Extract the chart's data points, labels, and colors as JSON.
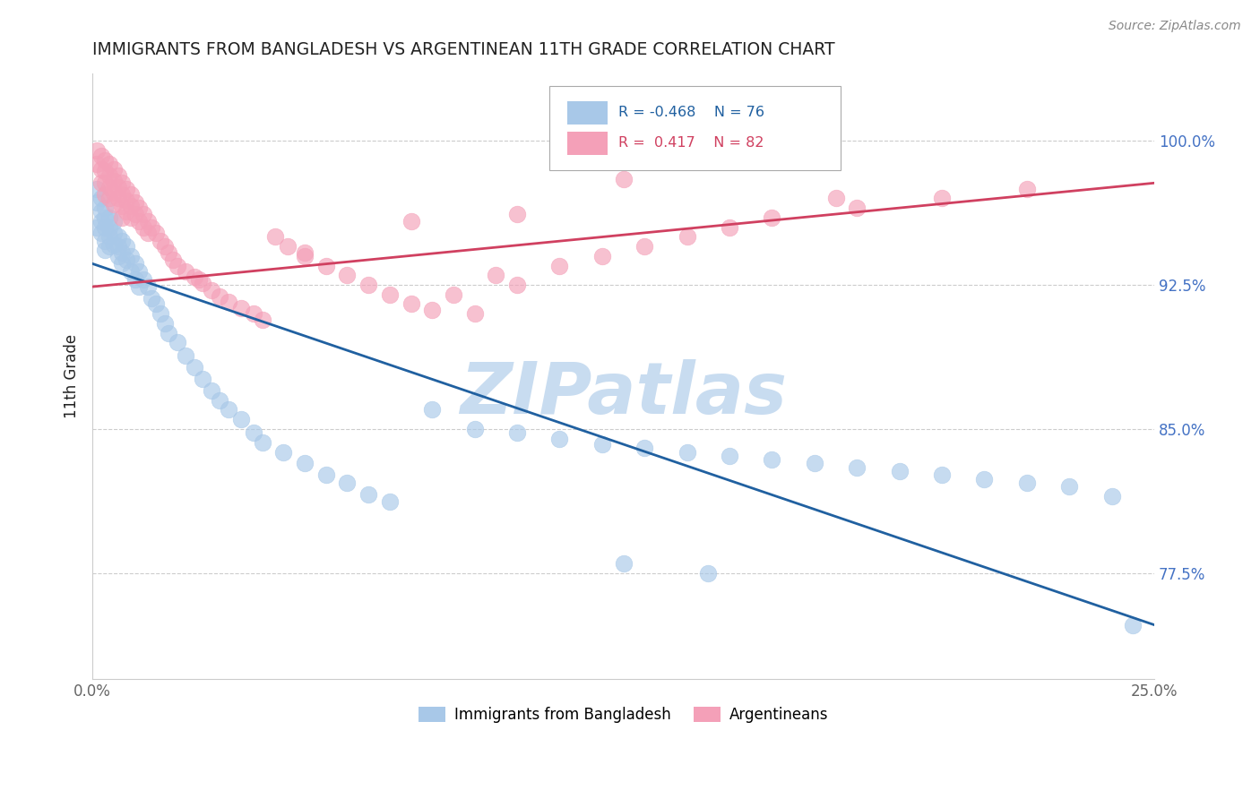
{
  "title": "IMMIGRANTS FROM BANGLADESH VS ARGENTINEAN 11TH GRADE CORRELATION CHART",
  "source": "Source: ZipAtlas.com",
  "ylabel": "11th Grade",
  "ytick_labels": [
    "77.5%",
    "85.0%",
    "92.5%",
    "100.0%"
  ],
  "ytick_values": [
    0.775,
    0.85,
    0.925,
    1.0
  ],
  "xlim": [
    0.0,
    0.25
  ],
  "ylim": [
    0.72,
    1.035
  ],
  "legend_blue_r": "R = -0.468",
  "legend_blue_n": "N = 76",
  "legend_pink_r": "R =  0.417",
  "legend_pink_n": "N = 82",
  "blue_color": "#A8C8E8",
  "pink_color": "#F4A0B8",
  "blue_line_color": "#2060A0",
  "pink_line_color": "#D04060",
  "title_color": "#222222",
  "source_color": "#888888",
  "axis_color": "#666666",
  "grid_color": "#CCCCCC",
  "watermark_color": "#C8DCF0",
  "blue_scatter_x": [
    0.001,
    0.001,
    0.001,
    0.002,
    0.002,
    0.002,
    0.002,
    0.003,
    0.003,
    0.003,
    0.003,
    0.003,
    0.004,
    0.004,
    0.004,
    0.004,
    0.005,
    0.005,
    0.005,
    0.006,
    0.006,
    0.006,
    0.007,
    0.007,
    0.007,
    0.008,
    0.008,
    0.009,
    0.009,
    0.01,
    0.01,
    0.011,
    0.011,
    0.012,
    0.013,
    0.014,
    0.015,
    0.016,
    0.017,
    0.018,
    0.02,
    0.022,
    0.024,
    0.026,
    0.028,
    0.03,
    0.032,
    0.035,
    0.038,
    0.04,
    0.045,
    0.05,
    0.055,
    0.06,
    0.065,
    0.07,
    0.08,
    0.09,
    0.1,
    0.11,
    0.12,
    0.13,
    0.14,
    0.15,
    0.16,
    0.17,
    0.18,
    0.19,
    0.2,
    0.21,
    0.22,
    0.23,
    0.24,
    0.245,
    0.125,
    0.145
  ],
  "blue_scatter_y": [
    0.975,
    0.968,
    0.955,
    0.97,
    0.963,
    0.958,
    0.952,
    0.965,
    0.96,
    0.955,
    0.948,
    0.943,
    0.96,
    0.955,
    0.95,
    0.945,
    0.958,
    0.952,
    0.946,
    0.95,
    0.945,
    0.94,
    0.948,
    0.942,
    0.936,
    0.945,
    0.938,
    0.94,
    0.932,
    0.936,
    0.928,
    0.932,
    0.924,
    0.928,
    0.924,
    0.918,
    0.915,
    0.91,
    0.905,
    0.9,
    0.895,
    0.888,
    0.882,
    0.876,
    0.87,
    0.865,
    0.86,
    0.855,
    0.848,
    0.843,
    0.838,
    0.832,
    0.826,
    0.822,
    0.816,
    0.812,
    0.86,
    0.85,
    0.848,
    0.845,
    0.842,
    0.84,
    0.838,
    0.836,
    0.834,
    0.832,
    0.83,
    0.828,
    0.826,
    0.824,
    0.822,
    0.82,
    0.815,
    0.748,
    0.78,
    0.775
  ],
  "pink_scatter_x": [
    0.001,
    0.001,
    0.002,
    0.002,
    0.002,
    0.003,
    0.003,
    0.003,
    0.003,
    0.004,
    0.004,
    0.004,
    0.004,
    0.005,
    0.005,
    0.005,
    0.005,
    0.006,
    0.006,
    0.006,
    0.007,
    0.007,
    0.007,
    0.007,
    0.008,
    0.008,
    0.008,
    0.009,
    0.009,
    0.009,
    0.01,
    0.01,
    0.011,
    0.011,
    0.012,
    0.012,
    0.013,
    0.013,
    0.014,
    0.015,
    0.016,
    0.017,
    0.018,
    0.019,
    0.02,
    0.022,
    0.024,
    0.026,
    0.028,
    0.03,
    0.032,
    0.035,
    0.038,
    0.04,
    0.043,
    0.046,
    0.05,
    0.055,
    0.06,
    0.065,
    0.07,
    0.075,
    0.08,
    0.085,
    0.09,
    0.095,
    0.1,
    0.11,
    0.12,
    0.13,
    0.14,
    0.15,
    0.16,
    0.18,
    0.2,
    0.22,
    0.025,
    0.05,
    0.075,
    0.1,
    0.125,
    0.175
  ],
  "pink_scatter_y": [
    0.995,
    0.988,
    0.992,
    0.985,
    0.978,
    0.99,
    0.984,
    0.978,
    0.972,
    0.988,
    0.982,
    0.976,
    0.97,
    0.985,
    0.979,
    0.973,
    0.967,
    0.982,
    0.976,
    0.97,
    0.978,
    0.972,
    0.966,
    0.96,
    0.975,
    0.969,
    0.963,
    0.972,
    0.966,
    0.96,
    0.968,
    0.962,
    0.965,
    0.958,
    0.962,
    0.955,
    0.958,
    0.952,
    0.955,
    0.952,
    0.948,
    0.945,
    0.942,
    0.938,
    0.935,
    0.932,
    0.929,
    0.926,
    0.922,
    0.919,
    0.916,
    0.913,
    0.91,
    0.907,
    0.95,
    0.945,
    0.94,
    0.935,
    0.93,
    0.925,
    0.92,
    0.915,
    0.912,
    0.92,
    0.91,
    0.93,
    0.925,
    0.935,
    0.94,
    0.945,
    0.95,
    0.955,
    0.96,
    0.965,
    0.97,
    0.975,
    0.928,
    0.942,
    0.958,
    0.962,
    0.98,
    0.97
  ]
}
